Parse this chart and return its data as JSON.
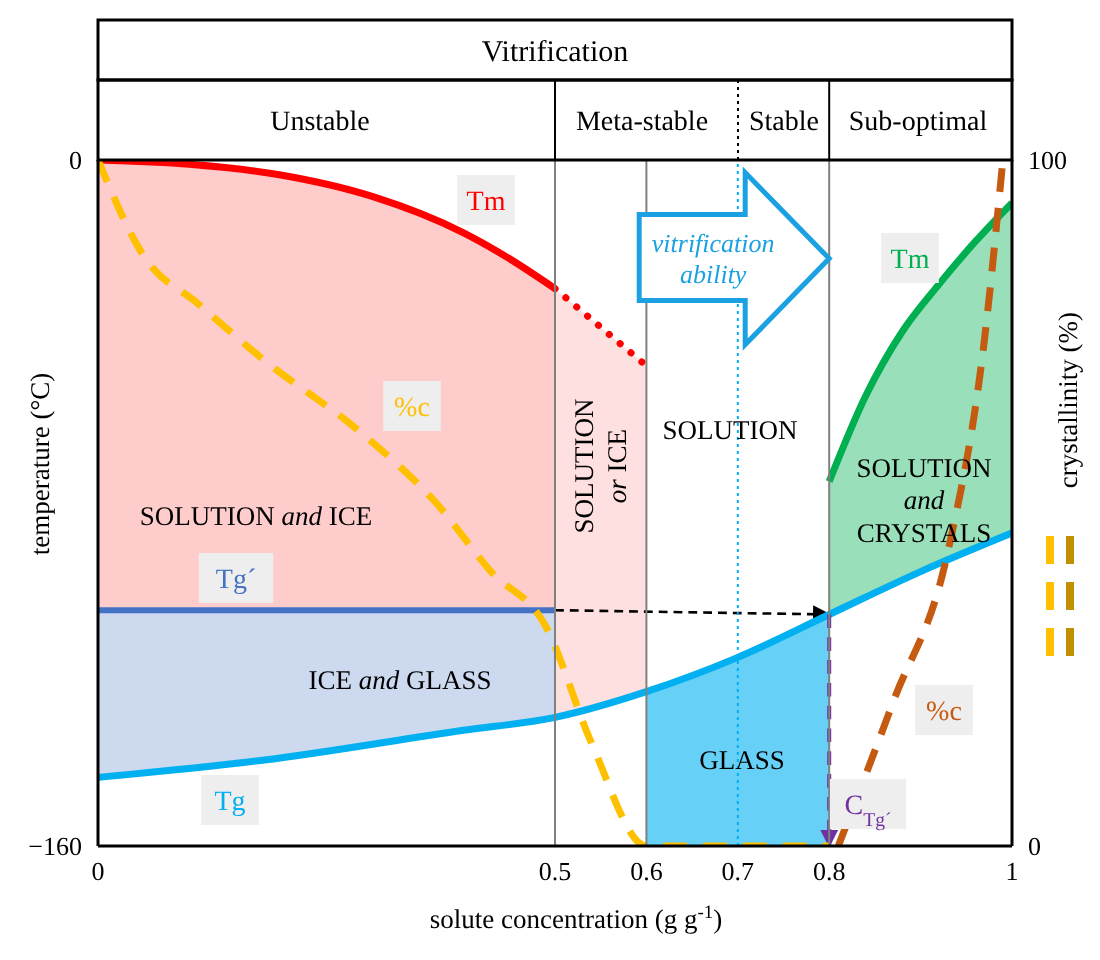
{
  "chart_data": {
    "type": "line",
    "title": "Vitrification",
    "xlabel": "solute concentration (g g$^{-1}$)",
    "ylabel": "temperature (°C)",
    "y2label": "crystallinity (%)",
    "xlim": [
      0,
      1
    ],
    "xticks": [
      0,
      0.5,
      0.6,
      0.7,
      0.8,
      1
    ],
    "ylim": [
      -160,
      0
    ],
    "yticks": [
      {
        "value": -160,
        "label": "−160"
      },
      0
    ],
    "y2lim": [
      0,
      100
    ],
    "y2ticks": [
      0,
      100
    ],
    "ref_lines": [
      {
        "axis": "x",
        "value": 0.5,
        "color": "#808080"
      },
      {
        "axis": "x",
        "value": 0.6,
        "color": "#808080"
      },
      {
        "axis": "x",
        "value": 0.7,
        "color": "#00b0f0",
        "line_style": "dotted"
      },
      {
        "axis": "x",
        "value": 0.8,
        "color": "#808080"
      }
    ],
    "annotations": [
      "Unstable",
      "Meta-stable",
      "Stable",
      "Sub-optimal",
      {
        "text": "vitrification ability",
        "x": 0.8,
        "y": -23
      },
      "SOLUTION",
      "SOLUTION and ICE",
      "ICE and GLASS",
      "SOLUTION or ICE",
      "GLASS",
      "SOLUTION and CRYSTALS"
    ],
    "series": [
      {
        "name": "Tm",
        "color": "#ff0000",
        "x": [
          0,
          0.1,
          0.2,
          0.3,
          0.4,
          0.45,
          0.5
        ],
        "values": [
          0,
          -1,
          -3.5,
          -8.5,
          -17,
          -23,
          -30
        ],
        "lower": [
          -105,
          -105,
          -105,
          -105,
          -105,
          -105,
          -105
        ],
        "upper": [
          0,
          -1,
          -3.5,
          -8.5,
          -17,
          -23,
          -30
        ]
      },
      {
        "color": "#ff0000",
        "line_style": "dotted",
        "x": [
          0.5,
          0.6
        ],
        "values": [
          -30,
          -48
        ],
        "lower": [
          -130,
          -124
        ],
        "upper": [
          -30,
          -48
        ]
      },
      {
        "name": "Tm",
        "color": "#00b050",
        "x": [
          0.8,
          0.84,
          0.88,
          0.92,
          0.96,
          1
        ],
        "values": [
          -75,
          -55,
          -40,
          -29,
          -19,
          -10
        ],
        "lower": [
          -106,
          -102,
          -98,
          -94,
          -91,
          -87
        ],
        "upper": [
          -75,
          -55,
          -40,
          -29,
          -19,
          -10
        ]
      },
      {
        "name": "Tg´",
        "color": "#4472c4",
        "x": [
          0,
          0.18,
          0.4,
          0.5
        ],
        "values": [
          -105,
          -105,
          -105,
          -105
        ],
        "lower": [
          -144,
          -140,
          -133,
          -130
        ],
        "upper": [
          -105,
          -105,
          -105,
          -105
        ]
      },
      {
        "color": "#000000",
        "line_style": "dashed",
        "x": [
          0.5,
          0.8
        ],
        "values": [
          -105,
          -106
        ]
      },
      {
        "name": "Tg",
        "color": "#00b0f0",
        "x": [
          0,
          0.18,
          0.4,
          0.5,
          0.6,
          0.7,
          0.8,
          0.9,
          1
        ],
        "values": [
          -144,
          -140,
          -133,
          -130,
          -124,
          -116,
          -106,
          -96,
          -87
        ],
        "lower": [
          null,
          null,
          null,
          null,
          -160,
          -160,
          -160,
          null,
          null
        ],
        "upper": [
          null,
          null,
          null,
          null,
          -124,
          -116,
          -106,
          null,
          null
        ]
      },
      {
        "name": "C$_{Tg´}$",
        "color": "#7030a0",
        "line_style": "dashed",
        "x": [
          0.8,
          0.8
        ],
        "values": [
          -106,
          -160
        ]
      },
      {
        "name": "%c",
        "color": "#ffc000",
        "line_style": "dashed",
        "axis": "y2",
        "x": [
          0,
          0.05,
          0.11,
          0.18,
          0.29,
          0.37,
          0.43,
          0.49,
          0.54,
          0.6,
          0.8
        ],
        "values": [
          100,
          86,
          79,
          71,
          60,
          50,
          40,
          32,
          15,
          0,
          0
        ]
      },
      {
        "name": "%c",
        "color": "#c55a11",
        "line_style": "dashed",
        "axis": "y2",
        "x": [
          0.81,
          0.87,
          0.93,
          0.97,
          0.99
        ],
        "values": [
          0,
          21,
          43,
          74,
          100
        ]
      }
    ]
  }
}
